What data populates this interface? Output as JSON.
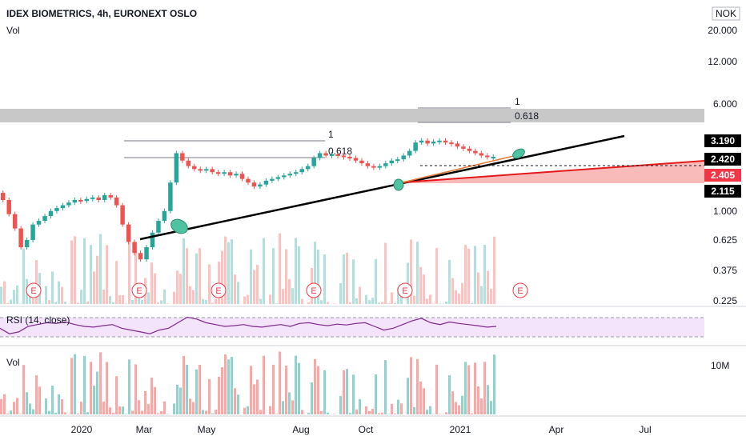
{
  "header": {
    "symbol_line": "IDEX BIOMETRICS, 4h, EURONEXT OSLO",
    "vol_label": "Vol",
    "currency": "NOK"
  },
  "rsi_label": "RSI (14, close)",
  "vol_pane_label": "Vol",
  "earnings_marker": "E",
  "colors": {
    "up": "#26a69a",
    "down": "#ef5350",
    "trendline": "#000000",
    "red_line": "#e31a1a",
    "red_zone": "#f7a3a3",
    "grey_zone": "#c8c8c8",
    "rsi_line": "#7e2a8e",
    "rsi_band": "#f3e3fb",
    "ellipse": "#4fc3a1"
  },
  "chart_data": [
    {
      "type": "line",
      "title": "IDEX BIOMETRICS, 4h, EURONEXT OSLO",
      "yscale": "log",
      "ylim": [
        0.2,
        40
      ],
      "price_ticks": [
        "20.000",
        "12.000",
        "6.000",
        "1.000",
        "0.625",
        "0.375",
        "0.225"
      ],
      "price_badges": [
        "3.190",
        "2.420",
        "2.405",
        "2.115"
      ],
      "x_ticks": [
        "2020",
        "Mar",
        "May",
        "Aug",
        "Oct",
        "2021",
        "Apr",
        "Jul"
      ],
      "fib_levels": [
        {
          "label": "1",
          "value": 3.3
        },
        {
          "label": "0.618",
          "value": 2.6
        },
        {
          "label": "1",
          "value": 6.5
        },
        {
          "label": "0.618",
          "value": 4.6
        }
      ],
      "series": [
        {
          "values": [
            1.35,
            1.2,
            0.95,
            0.75,
            0.55,
            0.62,
            0.8,
            0.85,
            0.92,
            1.0,
            1.05,
            1.1,
            1.15,
            1.2,
            1.18,
            1.22,
            1.25,
            1.2,
            1.3,
            1.25,
            1.1,
            0.8,
            0.6,
            0.5,
            0.45,
            0.55,
            0.7,
            0.85,
            1.0,
            1.6,
            2.6,
            2.3,
            2.1,
            2.0,
            1.95,
            2.0,
            1.9,
            1.85,
            1.9,
            1.8,
            1.85,
            1.7,
            1.6,
            1.5,
            1.55,
            1.65,
            1.7,
            1.75,
            1.8,
            1.85,
            1.9,
            2.0,
            2.1,
            2.4,
            2.6,
            2.5,
            2.55,
            2.5,
            2.45,
            2.4,
            2.3,
            2.2,
            2.1,
            2.05,
            2.1,
            2.2,
            2.3,
            2.35,
            2.5,
            2.7,
            3.1,
            3.2,
            3.05,
            3.15,
            3.2,
            3.1,
            3.05,
            2.9,
            2.8,
            2.7,
            2.6,
            2.5,
            2.45,
            2.45
          ]
        }
      ]
    },
    {
      "type": "line",
      "title": "RSI (14, close)",
      "ylim": [
        0,
        100
      ],
      "series": [
        {
          "values": [
            45,
            30,
            35,
            50,
            55,
            60,
            58,
            62,
            55,
            50,
            48,
            52,
            55,
            45,
            40,
            35,
            30,
            40,
            45,
            60,
            75,
            70,
            60,
            55,
            50,
            52,
            55,
            50,
            48,
            52,
            55,
            50,
            58,
            60,
            55,
            52,
            56,
            54,
            58,
            60,
            50,
            40,
            45,
            55,
            65,
            72,
            60,
            55,
            62,
            58,
            55,
            52,
            48,
            50
          ]
        }
      ]
    },
    {
      "type": "bar",
      "title": "Vol",
      "y_ticks": [
        "10M"
      ]
    }
  ]
}
